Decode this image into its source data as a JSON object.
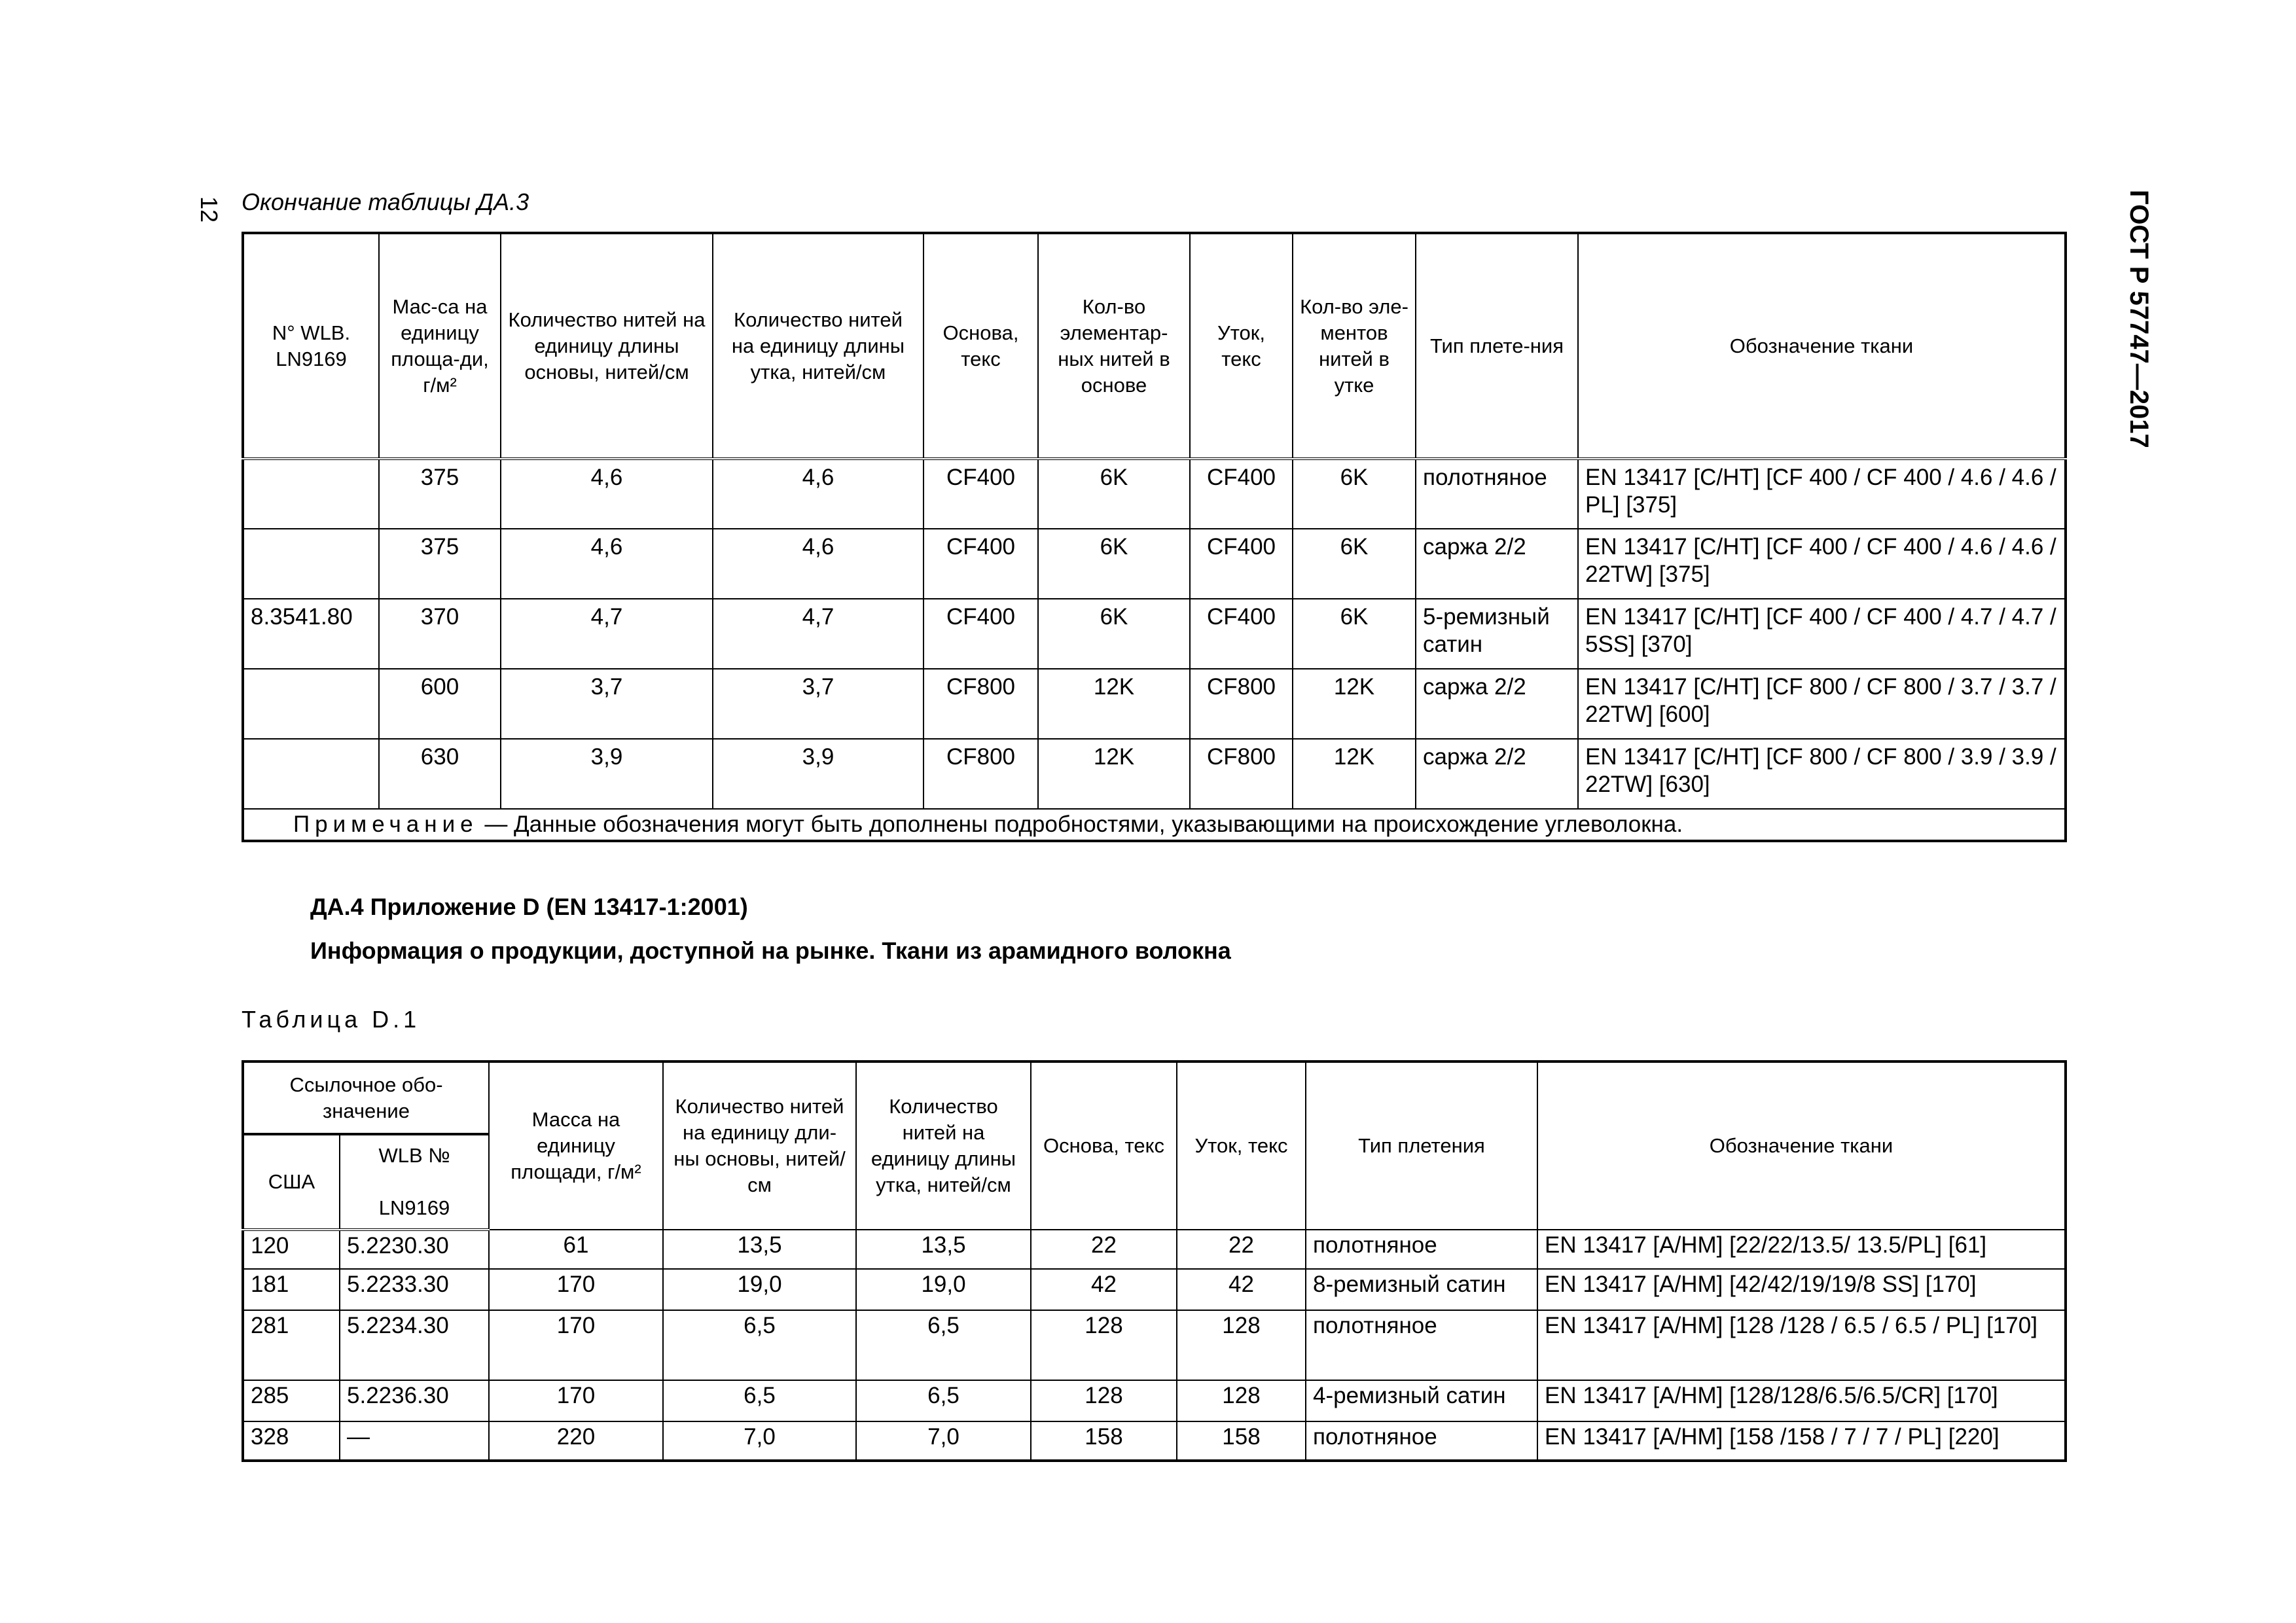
{
  "page_number": "12",
  "standard": "ГОСТ Р 57747—2017",
  "table1": {
    "caption": "Окончание таблицы ДА.3",
    "headers": [
      "N° WLB. LN9169",
      "Мас-са на единицу площа-ди, г/м²",
      "Количество нитей на единицу длины основы, нитей/см",
      "Количество нитей на единицу длины утка, нитей/см",
      "Основа, текс",
      "Кол-во элементар-ных нитей в основе",
      "Уток, текс",
      "Кол-во эле-ментов нитей в утке",
      "Тип плете-ния",
      "Обозначение ткани"
    ],
    "rows": [
      [
        "",
        "375",
        "4,6",
        "4,6",
        "CF400",
        "6K",
        "CF400",
        "6K",
        "полотняное",
        "EN 13417 [C/HT] [CF 400 / CF 400 / 4.6 / 4.6 / PL] [375]"
      ],
      [
        "",
        "375",
        "4,6",
        "4,6",
        "CF400",
        "6K",
        "CF400",
        "6K",
        "саржа 2/2",
        "EN 13417 [C/HT] [CF 400 / CF 400 / 4.6 / 4.6 / 22TW] [375]"
      ],
      [
        "8.3541.80",
        "370",
        "4,7",
        "4,7",
        "CF400",
        "6K",
        "CF400",
        "6K",
        "5-ремизный сатин",
        "EN 13417 [C/HT] [CF 400 / CF 400 / 4.7 / 4.7 / 5SS] [370]"
      ],
      [
        "",
        "600",
        "3,7",
        "3,7",
        "CF800",
        "12K",
        "CF800",
        "12K",
        "саржа 2/2",
        "EN 13417 [C/HT] [CF 800 / CF 800 / 3.7 / 3.7 / 22TW] [600]"
      ],
      [
        "",
        "630",
        "3,9",
        "3,9",
        "CF800",
        "12K",
        "CF800",
        "12K",
        "саржа 2/2",
        "EN 13417 [C/HT] [CF 800 / CF 800 / 3.9 / 3.9 / 22TW] [630]"
      ]
    ],
    "note_label": "Примечание",
    "note_text": " — Данные обозначения могут быть дополнены подробностями, указывающими на происхождение углеволокна."
  },
  "section": {
    "heading": "ДА.4 Приложение D (EN 13417-1:2001)",
    "subheading": "Информация о продукции, доступной на рынке. Ткани из арамидного волокна"
  },
  "table2": {
    "caption": "Таблица D.1",
    "group_header": "Ссылочное обо-значение",
    "sub_headers": [
      "США",
      "WLB №",
      "LN9169"
    ],
    "headers": [
      "Масса на единицу площади, г/м²",
      "Количество нитей на единицу дли-ны основы, нитей/см",
      "Количество нитей на единицу длины утка, нитей/см",
      "Основа, текс",
      "Уток, текс",
      "Тип плетения",
      "Обозначение ткани"
    ],
    "rows": [
      [
        "120",
        "5.2230.30",
        "61",
        "13,5",
        "13,5",
        "22",
        "22",
        "полотняное",
        "EN 13417 [A/HM] [22/22/13.5/ 13.5/PL] [61]"
      ],
      [
        "181",
        "5.2233.30",
        "170",
        "19,0",
        "19,0",
        "42",
        "42",
        "8-ремизный сатин",
        "EN 13417 [A/HM] [42/42/19/19/8 SS] [170]"
      ],
      [
        "281",
        "5.2234.30",
        "170",
        "6,5",
        "6,5",
        "128",
        "128",
        "полотняное",
        "EN 13417 [A/HM] [128 /128 / 6.5 / 6.5 / PL] [170]"
      ],
      [
        "285",
        "5.2236.30",
        "170",
        "6,5",
        "6,5",
        "128",
        "128",
        "4-ремизный сатин",
        "EN 13417 [A/HM] [128/128/6.5/6.5/CR] [170]"
      ],
      [
        "328",
        "—",
        "220",
        "7,0",
        "7,0",
        "158",
        "158",
        "полотняное",
        "EN 13417 [A/HM] [158 /158 / 7 / 7 / PL] [220]"
      ]
    ]
  }
}
